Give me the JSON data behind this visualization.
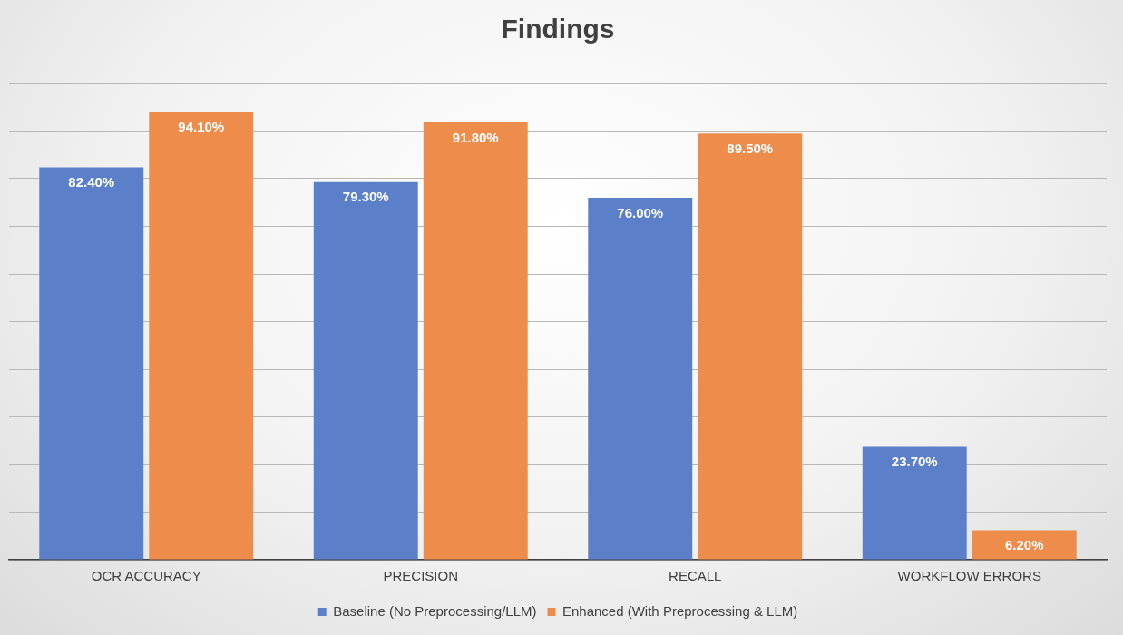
{
  "chart_data": {
    "type": "bar",
    "title": "Findings",
    "categories": [
      "OCR ACCURACY",
      "PRECISION",
      "RECALL",
      "WORKFLOW ERRORS"
    ],
    "series": [
      {
        "name": "Baseline (No Preprocessing/LLM)",
        "color": "#5b80c9",
        "values": [
          82.4,
          79.3,
          76.0,
          23.7
        ],
        "value_labels": [
          "82.40%",
          "79.30%",
          "76.00%",
          "23.70%"
        ]
      },
      {
        "name": "Enhanced (With Preprocessing & LLM)",
        "color": "#ed8c4b",
        "values": [
          94.1,
          91.8,
          89.5,
          6.2
        ],
        "value_labels": [
          "94.10%",
          "91.80%",
          "89.50%",
          "6.20%"
        ]
      }
    ],
    "ylim": [
      0,
      100
    ],
    "yticks": [
      {
        "value": 0,
        "label": null
      },
      {
        "value": 10,
        "label": null
      },
      {
        "value": 20,
        "label": null
      },
      {
        "value": 30,
        "label": null
      },
      {
        "value": 40,
        "label": null
      },
      {
        "value": 50,
        "label": null
      },
      {
        "value": 60,
        "label": null
      },
      {
        "value": 70,
        "label": null
      },
      {
        "value": 80,
        "label": null
      },
      {
        "value": 90,
        "label": null
      },
      {
        "value": 100,
        "label": null
      }
    ],
    "tick_labels": "x",
    "grid": "y",
    "legend": "bottom"
  }
}
